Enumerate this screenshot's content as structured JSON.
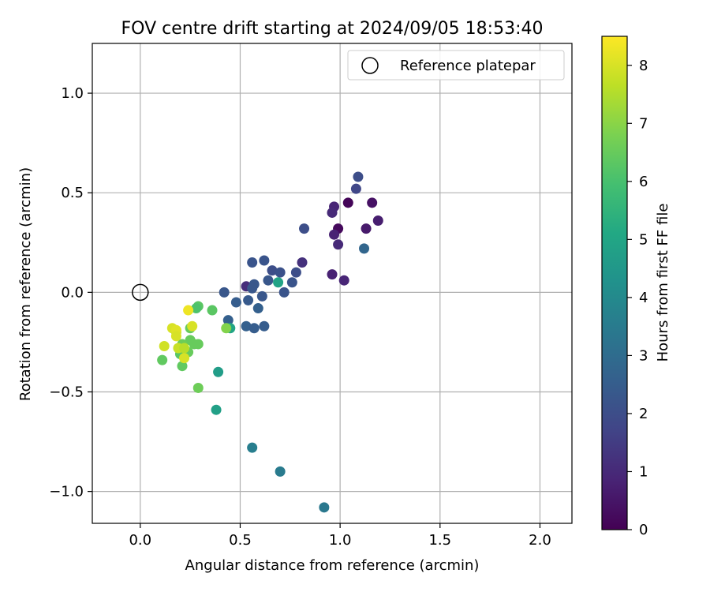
{
  "chart_data": {
    "type": "scatter",
    "title": "FOV centre drift starting at 2024/09/05 18:53:40",
    "xlabel": "Angular distance from reference (arcmin)",
    "ylabel": "Rotation from reference (arcmin)",
    "xlim": [
      -0.24,
      2.16
    ],
    "ylim": [
      -1.16,
      1.25
    ],
    "x_ticks": [
      0.0,
      0.5,
      1.0,
      1.5,
      2.0
    ],
    "x_tick_labels": [
      "0.0",
      "0.5",
      "1.0",
      "1.5",
      "2.0"
    ],
    "y_ticks": [
      -1.0,
      -0.5,
      0.0,
      0.5,
      1.0
    ],
    "y_tick_labels": [
      "−1.0",
      "−0.5",
      "0.0",
      "0.5",
      "1.0"
    ],
    "grid": true,
    "legend": {
      "placement": "upper right",
      "entries": [
        "Reference platepar"
      ]
    },
    "reference_point": {
      "x": 0.0,
      "y": 0.0
    },
    "colorbar": {
      "label": "Hours from first FF file",
      "colormap": "viridis",
      "range": [
        0,
        8.5
      ],
      "ticks": [
        0,
        1,
        2,
        3,
        4,
        5,
        6,
        7,
        8
      ],
      "tick_labels": [
        "0",
        "1",
        "2",
        "3",
        "4",
        "5",
        "6",
        "7",
        "8"
      ]
    },
    "points": [
      {
        "x": 1.04,
        "y": 0.45,
        "c": 0.1
      },
      {
        "x": 1.16,
        "y": 0.45,
        "c": 0.4
      },
      {
        "x": 1.19,
        "y": 0.36,
        "c": 0.7
      },
      {
        "x": 1.13,
        "y": 0.32,
        "c": 0.6
      },
      {
        "x": 0.99,
        "y": 0.32,
        "c": 0.2
      },
      {
        "x": 0.97,
        "y": 0.43,
        "c": 0.9
      },
      {
        "x": 0.96,
        "y": 0.4,
        "c": 1.0
      },
      {
        "x": 0.97,
        "y": 0.29,
        "c": 0.8
      },
      {
        "x": 0.99,
        "y": 0.24,
        "c": 1.0
      },
      {
        "x": 0.96,
        "y": 0.09,
        "c": 0.8
      },
      {
        "x": 1.02,
        "y": 0.06,
        "c": 0.9
      },
      {
        "x": 0.81,
        "y": 0.15,
        "c": 1.2
      },
      {
        "x": 0.53,
        "y": 0.03,
        "c": 1.1
      },
      {
        "x": 1.09,
        "y": 0.58,
        "c": 2.0
      },
      {
        "x": 1.08,
        "y": 0.52,
        "c": 1.8
      },
      {
        "x": 1.12,
        "y": 0.22,
        "c": 2.8
      },
      {
        "x": 0.82,
        "y": 0.32,
        "c": 2.0
      },
      {
        "x": 0.56,
        "y": 0.15,
        "c": 2.2
      },
      {
        "x": 0.62,
        "y": 0.16,
        "c": 2.2
      },
      {
        "x": 0.66,
        "y": 0.11,
        "c": 2.0
      },
      {
        "x": 0.7,
        "y": 0.1,
        "c": 2.1
      },
      {
        "x": 0.78,
        "y": 0.1,
        "c": 2.0
      },
      {
        "x": 0.64,
        "y": 0.06,
        "c": 2.3
      },
      {
        "x": 0.76,
        "y": 0.05,
        "c": 2.2
      },
      {
        "x": 0.57,
        "y": 0.04,
        "c": 2.3
      },
      {
        "x": 0.56,
        "y": 0.02,
        "c": 2.3
      },
      {
        "x": 0.72,
        "y": 0.0,
        "c": 2.2
      },
      {
        "x": 0.42,
        "y": 0.0,
        "c": 2.3
      },
      {
        "x": 0.61,
        "y": -0.02,
        "c": 2.3
      },
      {
        "x": 0.48,
        "y": -0.05,
        "c": 2.5
      },
      {
        "x": 0.54,
        "y": -0.04,
        "c": 2.4
      },
      {
        "x": 0.59,
        "y": -0.08,
        "c": 2.6
      },
      {
        "x": 0.44,
        "y": -0.14,
        "c": 2.6
      },
      {
        "x": 0.53,
        "y": -0.17,
        "c": 2.6
      },
      {
        "x": 0.57,
        "y": -0.18,
        "c": 2.5
      },
      {
        "x": 0.62,
        "y": -0.17,
        "c": 2.5
      },
      {
        "x": 0.69,
        "y": 0.05,
        "c": 4.9
      },
      {
        "x": 0.45,
        "y": -0.18,
        "c": 5.0
      },
      {
        "x": 0.39,
        "y": -0.4,
        "c": 4.7
      },
      {
        "x": 0.38,
        "y": -0.59,
        "c": 4.8
      },
      {
        "x": 0.56,
        "y": -0.78,
        "c": 3.6
      },
      {
        "x": 0.7,
        "y": -0.9,
        "c": 3.5
      },
      {
        "x": 0.92,
        "y": -1.08,
        "c": 3.4
      },
      {
        "x": 0.36,
        "y": -0.09,
        "c": 6.3
      },
      {
        "x": 0.29,
        "y": -0.07,
        "c": 6.3
      },
      {
        "x": 0.28,
        "y": -0.08,
        "c": 6.1
      },
      {
        "x": 0.43,
        "y": -0.18,
        "c": 6.9
      },
      {
        "x": 0.25,
        "y": -0.18,
        "c": 6.5
      },
      {
        "x": 0.25,
        "y": -0.24,
        "c": 6.5
      },
      {
        "x": 0.21,
        "y": -0.26,
        "c": 6.6
      },
      {
        "x": 0.27,
        "y": -0.26,
        "c": 6.5
      },
      {
        "x": 0.29,
        "y": -0.26,
        "c": 6.5
      },
      {
        "x": 0.24,
        "y": -0.3,
        "c": 6.5
      },
      {
        "x": 0.2,
        "y": -0.31,
        "c": 6.3
      },
      {
        "x": 0.21,
        "y": -0.37,
        "c": 6.4
      },
      {
        "x": 0.11,
        "y": -0.34,
        "c": 6.4
      },
      {
        "x": 0.29,
        "y": -0.48,
        "c": 6.6
      },
      {
        "x": 0.18,
        "y": -0.2,
        "c": 7.5
      },
      {
        "x": 0.24,
        "y": -0.09,
        "c": 8.3
      },
      {
        "x": 0.26,
        "y": -0.17,
        "c": 8.0
      },
      {
        "x": 0.16,
        "y": -0.18,
        "c": 8.0
      },
      {
        "x": 0.18,
        "y": -0.19,
        "c": 8.1
      },
      {
        "x": 0.18,
        "y": -0.22,
        "c": 8.0
      },
      {
        "x": 0.12,
        "y": -0.27,
        "c": 7.9
      },
      {
        "x": 0.19,
        "y": -0.28,
        "c": 7.8
      },
      {
        "x": 0.22,
        "y": -0.33,
        "c": 8.0
      },
      {
        "x": 0.22,
        "y": -0.28,
        "c": 7.6
      }
    ]
  }
}
